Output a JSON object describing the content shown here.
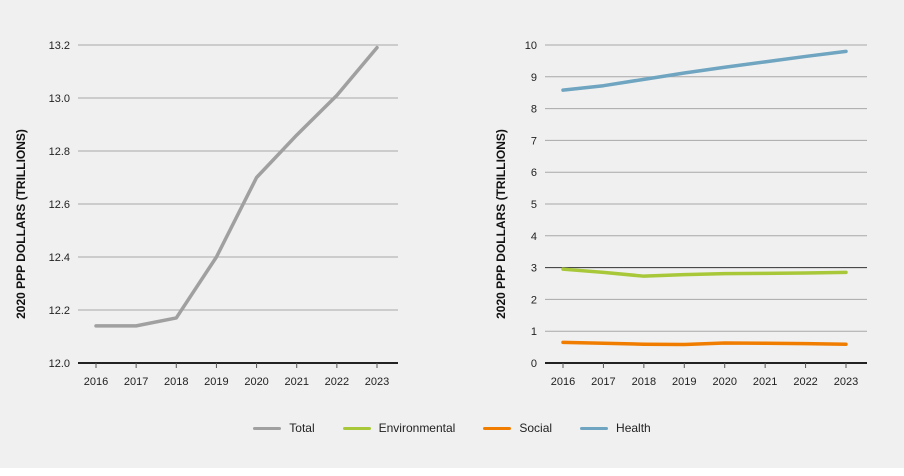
{
  "chart_data": [
    {
      "type": "line",
      "ylabel": "2020 PPP DOLLARS (TRILLIONS)",
      "xlabel": "",
      "x": [
        "2016",
        "2017",
        "2018",
        "2019",
        "2020",
        "2021",
        "2022",
        "2023"
      ],
      "ylim": [
        12.0,
        13.2
      ],
      "yticks": [
        "12.0",
        "12.2",
        "12.4",
        "12.6",
        "12.8",
        "13.0",
        "13.2"
      ],
      "grid": true,
      "series": [
        {
          "name": "Total",
          "color": "#a0a0a0",
          "values": [
            12.14,
            12.14,
            12.17,
            12.4,
            12.7,
            12.86,
            13.01,
            13.19
          ]
        }
      ]
    },
    {
      "type": "line",
      "ylabel": "2020 PPP DOLLARS (TRILLIONS)",
      "xlabel": "",
      "x": [
        "2016",
        "2017",
        "2018",
        "2019",
        "2020",
        "2021",
        "2022",
        "2023"
      ],
      "ylim": [
        0,
        10
      ],
      "yticks": [
        "0",
        "1",
        "2",
        "3",
        "4",
        "5",
        "6",
        "7",
        "8",
        "9",
        "10"
      ],
      "grid": true,
      "series": [
        {
          "name": "Environmental",
          "color": "#a8c83a",
          "values": [
            2.95,
            2.85,
            2.73,
            2.78,
            2.81,
            2.82,
            2.83,
            2.85
          ]
        },
        {
          "name": "Social",
          "color": "#f07d00",
          "values": [
            0.65,
            0.62,
            0.59,
            0.58,
            0.63,
            0.62,
            0.61,
            0.59
          ]
        },
        {
          "name": "Health",
          "color": "#6fa5c0",
          "values": [
            8.58,
            8.72,
            8.92,
            9.12,
            9.3,
            9.47,
            9.64,
            9.8
          ]
        }
      ]
    }
  ],
  "legend": {
    "placement": "bottom",
    "items": [
      {
        "label": "Total",
        "color": "#a0a0a0"
      },
      {
        "label": "Environmental",
        "color": "#a8c83a"
      },
      {
        "label": "Social",
        "color": "#f07d00"
      },
      {
        "label": "Health",
        "color": "#6fa5c0"
      }
    ]
  }
}
